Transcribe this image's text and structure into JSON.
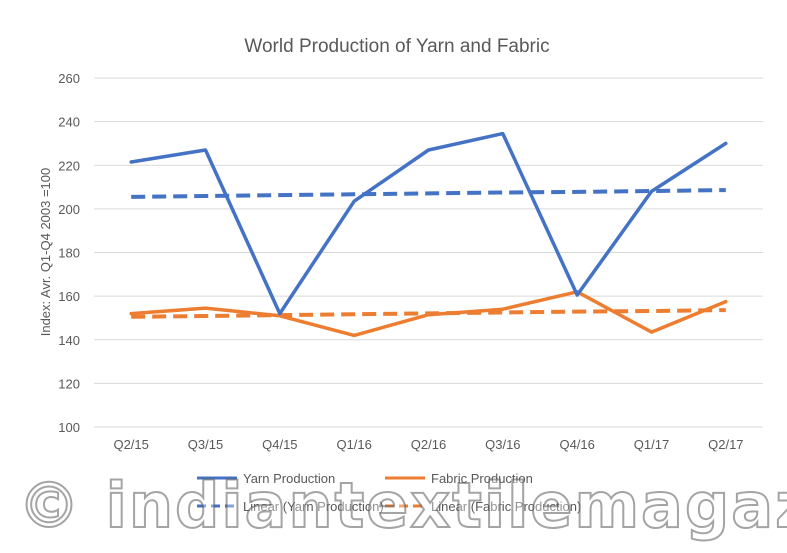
{
  "chart_data": {
    "type": "line",
    "title": "World Production of Yarn and Fabric",
    "ylabel": "Index: Avr. Q1-Q4 2003 =100",
    "xlabel": "",
    "categories": [
      "Q2/15",
      "Q3/15",
      "Q4/15",
      "Q1/16",
      "Q2/16",
      "Q3/16",
      "Q4/16",
      "Q1/17",
      "Q2/17"
    ],
    "ylim": [
      100,
      260
    ],
    "yticks": [
      100,
      120,
      140,
      160,
      180,
      200,
      220,
      240,
      260
    ],
    "grid": true,
    "legend_position": "bottom",
    "series": [
      {
        "name": "Yarn Production",
        "style": "solid",
        "color": "#4472C4",
        "values": [
          221.5,
          227,
          152,
          203.5,
          227,
          234.5,
          160.5,
          208,
          230
        ]
      },
      {
        "name": "Fabric Production",
        "style": "solid",
        "color": "#ED7D31",
        "values": [
          152,
          154.5,
          151,
          142,
          151.5,
          154,
          162,
          143.5,
          157.5
        ]
      },
      {
        "name": "Linear (Yarn Production)",
        "style": "dashed",
        "color": "#4472C4",
        "values": [
          205.5,
          205.9,
          206.3,
          206.7,
          207.1,
          207.5,
          207.8,
          208.2,
          208.6
        ]
      },
      {
        "name": "Linear (Fabric Production)",
        "style": "dashed",
        "color": "#ED7D31",
        "values": [
          150.5,
          150.9,
          151.3,
          151.7,
          152.1,
          152.5,
          152.9,
          153.2,
          153.6
        ]
      }
    ]
  },
  "watermark": "© indiantextilemagazine.in"
}
